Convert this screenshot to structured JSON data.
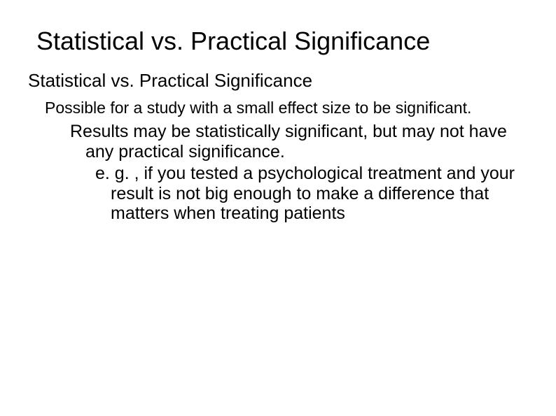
{
  "title": "Statistical vs. Practical Significance",
  "subtitle": "Statistical vs. Practical Significance",
  "level1": "Possible for a study with a small effect size to be significant.",
  "level2": "Results may be statistically significant, but may not have any practical significance.",
  "level3": "e. g. , if you tested a psychological treatment and your result is not big enough to make a difference that matters when treating patients",
  "colors": {
    "background": "#ffffff",
    "text": "#000000"
  },
  "font_family": "Arial",
  "font_sizes": {
    "title": 36,
    "subtitle": 26,
    "level1": 23,
    "level2": 25,
    "level3": 25
  }
}
